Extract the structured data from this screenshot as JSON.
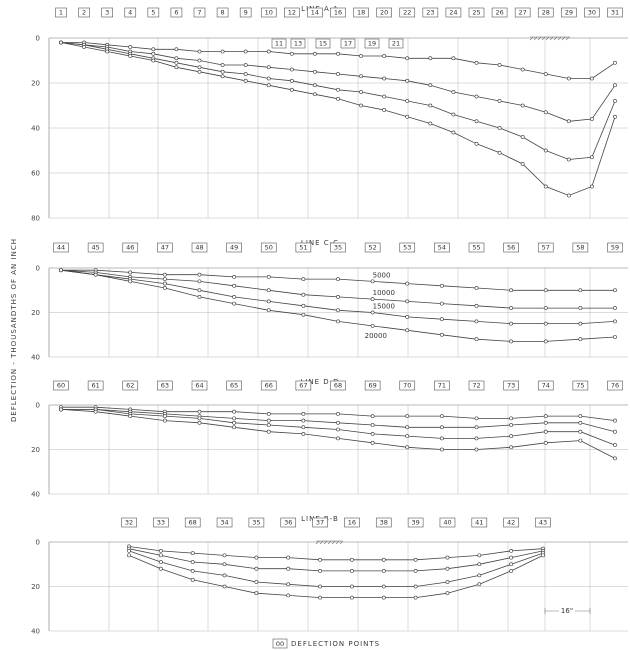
{
  "ylabel": "DEFLECTION - THOUSANDTHS OF AN INCH",
  "legend_text": "DEFLECTION POINTS",
  "legend_box": "00",
  "chart_data": [
    {
      "type": "line",
      "title": "LINE A-A",
      "yticks": [
        0,
        20,
        40,
        60,
        80
      ],
      "ylim": [
        0,
        80
      ],
      "boxes_top": [
        "1",
        "2",
        "3",
        "4",
        "5",
        "6",
        "7",
        "8",
        "9",
        "10",
        "12",
        "14",
        "16",
        "18",
        "20",
        "22",
        "23",
        "24",
        "25",
        "26",
        "27",
        "28",
        "29",
        "30",
        "31"
      ],
      "boxes_lower": [
        "11",
        "13",
        "15",
        "17",
        "19",
        "21"
      ],
      "series": [
        {
          "values": [
            2,
            2,
            3,
            4,
            5,
            5,
            6,
            6,
            6,
            6,
            7,
            7,
            7,
            8,
            8,
            9,
            9,
            9,
            11,
            12,
            14,
            16,
            18,
            18,
            11
          ]
        },
        {
          "values": [
            2,
            3,
            4,
            6,
            7,
            9,
            10,
            12,
            12,
            13,
            14,
            15,
            16,
            17,
            18,
            19,
            21,
            24,
            26,
            28,
            30,
            33,
            37,
            36,
            21
          ]
        },
        {
          "values": [
            2,
            3,
            5,
            7,
            9,
            11,
            13,
            15,
            16,
            18,
            19,
            21,
            23,
            24,
            26,
            28,
            30,
            34,
            37,
            40,
            44,
            50,
            54,
            53,
            28
          ]
        },
        {
          "values": [
            2,
            4,
            6,
            8,
            10,
            13,
            15,
            17,
            19,
            21,
            23,
            25,
            27,
            30,
            32,
            35,
            38,
            42,
            47,
            51,
            56,
            66,
            70,
            66,
            35
          ]
        }
      ]
    },
    {
      "type": "line",
      "title": "LINE C-C",
      "yticks": [
        0,
        20,
        40
      ],
      "ylim": [
        0,
        40
      ],
      "boxes_top": [
        "44",
        "45",
        "46",
        "47",
        "48",
        "49",
        "50",
        "51",
        "35",
        "52",
        "53",
        "54",
        "55",
        "56",
        "57",
        "58",
        "59"
      ],
      "load_labels": [
        "5000",
        "10000",
        "15000",
        "20000"
      ],
      "series": [
        {
          "values": [
            1,
            1,
            2,
            3,
            3,
            4,
            4,
            5,
            5,
            6,
            7,
            8,
            9,
            10,
            10,
            10,
            10
          ]
        },
        {
          "values": [
            1,
            2,
            4,
            5,
            6,
            8,
            10,
            12,
            13,
            14,
            15,
            16,
            17,
            18,
            18,
            18,
            18
          ]
        },
        {
          "values": [
            1,
            3,
            5,
            7,
            10,
            13,
            15,
            17,
            19,
            20,
            22,
            23,
            24,
            25,
            25,
            25,
            24
          ]
        },
        {
          "values": [
            1,
            3,
            6,
            9,
            13,
            16,
            19,
            21,
            24,
            26,
            28,
            30,
            32,
            33,
            33,
            32,
            31
          ]
        }
      ]
    },
    {
      "type": "line",
      "title": "LINE D-D",
      "yticks": [
        0,
        20,
        40
      ],
      "ylim": [
        0,
        40
      ],
      "boxes_top": [
        "60",
        "61",
        "62",
        "63",
        "64",
        "65",
        "66",
        "67",
        "68",
        "69",
        "70",
        "71",
        "72",
        "73",
        "74",
        "75",
        "76"
      ],
      "series": [
        {
          "values": [
            1,
            1,
            2,
            3,
            3,
            3,
            4,
            4,
            4,
            5,
            5,
            5,
            6,
            6,
            5,
            5,
            7
          ]
        },
        {
          "values": [
            2,
            2,
            3,
            4,
            5,
            6,
            7,
            7,
            8,
            9,
            10,
            10,
            10,
            9,
            8,
            8,
            12
          ]
        },
        {
          "values": [
            2,
            2,
            4,
            5,
            6,
            8,
            9,
            10,
            11,
            13,
            14,
            15,
            15,
            14,
            12,
            12,
            18
          ]
        },
        {
          "values": [
            2,
            3,
            5,
            7,
            8,
            10,
            12,
            13,
            15,
            17,
            19,
            20,
            20,
            19,
            17,
            16,
            24
          ]
        }
      ]
    },
    {
      "type": "line",
      "title": "LINE B-B",
      "yticks": [
        0,
        20,
        40
      ],
      "ylim": [
        0,
        40
      ],
      "boxes_top": [
        "32",
        "33",
        "68",
        "34",
        "35",
        "36",
        "37",
        "16",
        "38",
        "39",
        "40",
        "41",
        "42",
        "43"
      ],
      "dimension_label": "16\"",
      "series": [
        {
          "values": [
            2,
            4,
            5,
            6,
            7,
            7,
            8,
            8,
            8,
            8,
            7,
            6,
            4,
            3
          ]
        },
        {
          "values": [
            3,
            6,
            9,
            10,
            12,
            12,
            13,
            13,
            13,
            13,
            12,
            10,
            7,
            4
          ]
        },
        {
          "values": [
            4,
            9,
            13,
            15,
            18,
            19,
            20,
            20,
            20,
            20,
            18,
            15,
            10,
            5
          ]
        },
        {
          "values": [
            6,
            12,
            17,
            20,
            23,
            24,
            25,
            25,
            25,
            25,
            23,
            19,
            13,
            6
          ]
        }
      ]
    }
  ]
}
